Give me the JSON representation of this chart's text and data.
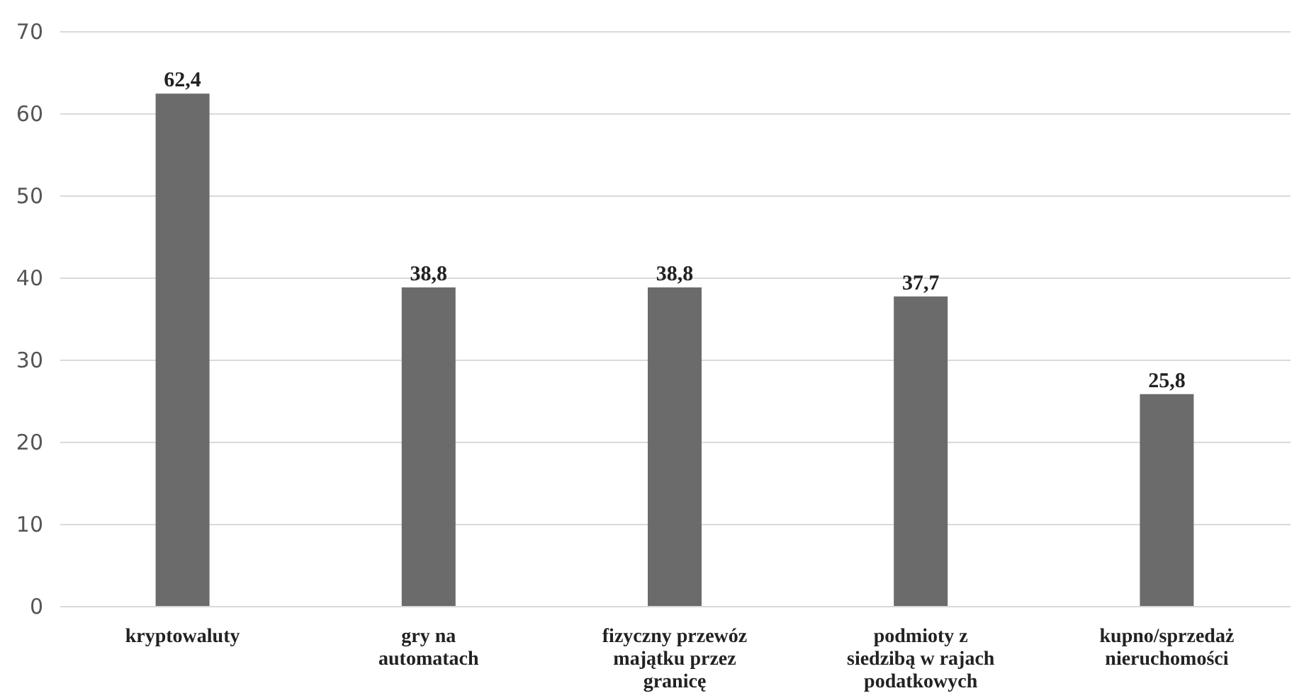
{
  "chart_data": {
    "type": "bar",
    "categories": [
      "kryptowaluty",
      "gry na\nautomatach",
      "fizyczny przewóz\nmajątku przez\ngranicę",
      "podmioty z\nsiedzibą w rajach\npodatkowych",
      "kupno/sprzedaż\nnieruchomości"
    ],
    "values": [
      62.4,
      38.8,
      38.8,
      37.7,
      25.8
    ],
    "value_labels": [
      "62,4",
      "38,8",
      "38,8",
      "37,7",
      "25,8"
    ],
    "color": "#6b6b6b",
    "ylim": [
      0,
      70
    ],
    "yticks": [
      0,
      10,
      20,
      30,
      40,
      50,
      60,
      70
    ],
    "grid": "y"
  }
}
